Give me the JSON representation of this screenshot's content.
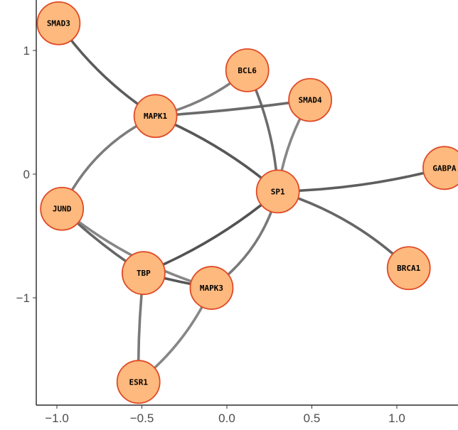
{
  "diagram": {
    "type": "network",
    "x_ticks": [
      {
        "value": -1.0,
        "label": "−1.0"
      },
      {
        "value": -0.5,
        "label": "−0.5"
      },
      {
        "value": 0.0,
        "label": "0.0"
      },
      {
        "value": 0.5,
        "label": "0.5"
      },
      {
        "value": 1.0,
        "label": "1.0"
      }
    ],
    "y_ticks": [
      {
        "value": 1,
        "label": "1"
      },
      {
        "value": 0,
        "label": "0"
      },
      {
        "value": -1,
        "label": "−1"
      }
    ],
    "nodes": [
      {
        "id": "SMAD3",
        "label": "SMAD3",
        "x": -0.99,
        "y": 1.22
      },
      {
        "id": "BCL6",
        "label": "BCL6",
        "x": 0.12,
        "y": 0.84
      },
      {
        "id": "SMAD4",
        "label": "SMAD4",
        "x": 0.49,
        "y": 0.6
      },
      {
        "id": "MAPK1",
        "label": "MAPK1",
        "x": -0.42,
        "y": 0.47
      },
      {
        "id": "GABPA",
        "label": "GABPA",
        "x": 1.28,
        "y": 0.05
      },
      {
        "id": "SP1",
        "label": "SP1",
        "x": 0.3,
        "y": -0.14
      },
      {
        "id": "JUND",
        "label": "JUND",
        "x": -0.97,
        "y": -0.28
      },
      {
        "id": "BRCA1",
        "label": "BRCA1",
        "x": 1.07,
        "y": -0.76
      },
      {
        "id": "TBP",
        "label": "TBP",
        "x": -0.49,
        "y": -0.8
      },
      {
        "id": "MAPK3",
        "label": "MAPK3",
        "x": -0.09,
        "y": -0.92
      },
      {
        "id": "ESR1",
        "label": "ESR1",
        "x": -0.52,
        "y": -1.68
      }
    ],
    "edges": [
      {
        "from": "SMAD3",
        "to": "MAPK1",
        "bend": 0.1,
        "shade": "#4a4a4a"
      },
      {
        "from": "MAPK1",
        "to": "BCL6",
        "bend": 0.12,
        "shade": "#707070"
      },
      {
        "from": "MAPK1",
        "to": "SMAD4",
        "bend": 0.02,
        "shade": "#5a5a5a"
      },
      {
        "from": "MAPK1",
        "to": "SP1",
        "bend": -0.08,
        "shade": "#454545"
      },
      {
        "from": "MAPK1",
        "to": "JUND",
        "bend": 0.18,
        "shade": "#6e6e6e"
      },
      {
        "from": "BCL6",
        "to": "SP1",
        "bend": -0.1,
        "shade": "#5c5c5c"
      },
      {
        "from": "SMAD4",
        "to": "SP1",
        "bend": 0.1,
        "shade": "#7a7a7a"
      },
      {
        "from": "SP1",
        "to": "GABPA",
        "bend": 0.06,
        "shade": "#4c4c4c"
      },
      {
        "from": "SP1",
        "to": "BRCA1",
        "bend": -0.12,
        "shade": "#555555"
      },
      {
        "from": "SP1",
        "to": "TBP",
        "bend": -0.08,
        "shade": "#404040"
      },
      {
        "from": "SP1",
        "to": "MAPK3",
        "bend": -0.18,
        "shade": "#6a6a6a"
      },
      {
        "from": "JUND",
        "to": "TBP",
        "bend": 0.05,
        "shade": "#555555"
      },
      {
        "from": "JUND",
        "to": "MAPK3",
        "bend": 0.1,
        "shade": "#7a7a7a"
      },
      {
        "from": "TBP",
        "to": "MAPK3",
        "bend": 0.02,
        "shade": "#444444"
      },
      {
        "from": "TBP",
        "to": "ESR1",
        "bend": 0.03,
        "shade": "#6a6a6a"
      },
      {
        "from": "MAPK3",
        "to": "ESR1",
        "bend": -0.12,
        "shade": "#7a7a7a"
      }
    ],
    "colors": {
      "node_fill": "#fdb97e",
      "node_stroke": "#e04a26",
      "axis": "#000000",
      "tick_text": "#4d4d4d"
    }
  }
}
